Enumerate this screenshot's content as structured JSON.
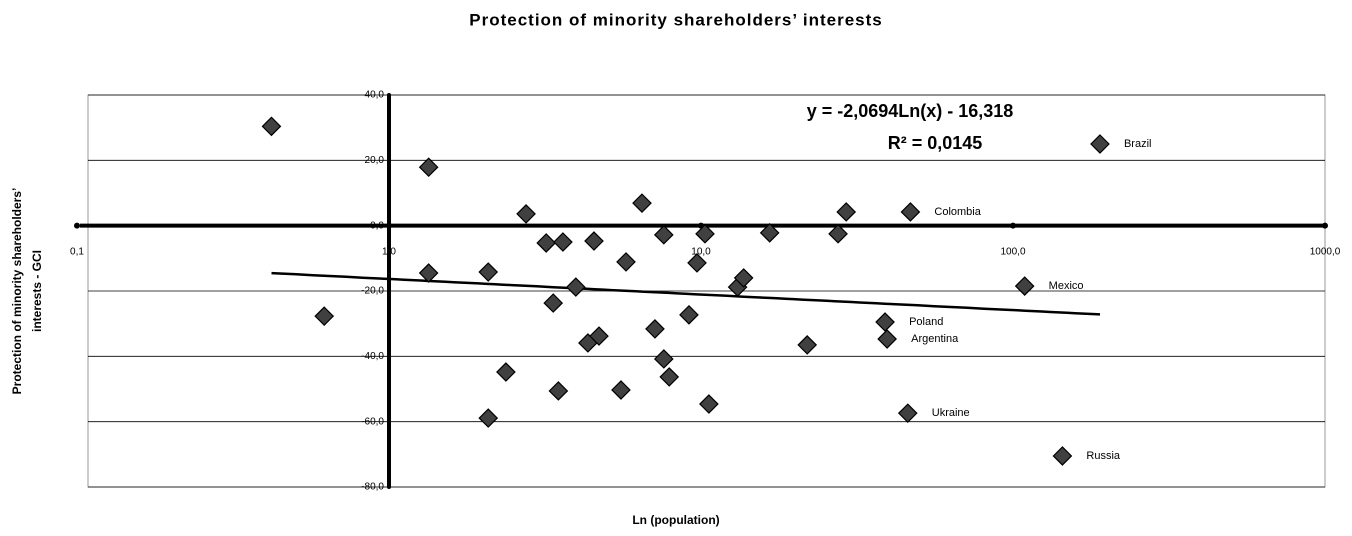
{
  "chart_data": {
    "type": "scatter",
    "title": "Protection of minority shareholders’ interests",
    "xlabel": "Ln (population)",
    "ylabel": [
      "Protection of minority shareholders’",
      "interests - GCI"
    ],
    "xscale": "log",
    "xlim": [
      0.1,
      1000
    ],
    "ylim": [
      -80,
      40
    ],
    "xticks": [
      {
        "value": 0.1,
        "label": "0,1"
      },
      {
        "value": 1,
        "label": "1,0"
      },
      {
        "value": 10,
        "label": "10,0"
      },
      {
        "value": 100,
        "label": "100,0"
      },
      {
        "value": 1000,
        "label": "1000,0"
      }
    ],
    "yticks": [
      {
        "value": 40,
        "label": "40,0"
      },
      {
        "value": 20,
        "label": "20,0"
      },
      {
        "value": 0,
        "label": "0,0"
      },
      {
        "value": -20,
        "label": "-20,0"
      },
      {
        "value": -40,
        "label": "-40,0"
      },
      {
        "value": -60,
        "label": "-60,0"
      },
      {
        "value": -80,
        "label": "-80,0"
      }
    ],
    "grid": true,
    "series": [
      {
        "color": "#404040",
        "x": [
          0.42,
          0.62,
          1.34,
          1.34,
          2.08,
          2.37,
          2.08,
          2.75,
          3.19,
          3.61,
          3.36,
          3.49,
          3.97,
          4.34,
          4.71,
          4.54,
          5.75,
          5.54,
          6.47,
          7.12,
          7.6,
          7.6,
          7.91,
          9.15,
          9.71,
          10.3,
          10.6,
          13.1,
          13.7,
          16.6,
          21.9,
          27.5,
          29.2,
          46.9,
          38.9,
          39.5,
          46,
          109,
          190,
          144
        ],
        "values": [
          30.4,
          -27.7,
          17.9,
          -14.5,
          -14.2,
          -44.8,
          -58.9,
          3.6,
          -5.3,
          -5,
          -23.7,
          -50.6,
          -18.8,
          -35.9,
          -33.8,
          -4.7,
          -11.1,
          -50.3,
          6.9,
          -31.6,
          -2.8,
          -40.8,
          -46.3,
          -27.3,
          -11.4,
          -2.5,
          -54.6,
          -18.8,
          -16,
          -2.2,
          -36.5,
          -2.5,
          4.2,
          4.2,
          -29.5,
          -34.7,
          -57.4,
          -18.5,
          25,
          -70.5
        ],
        "labels": [
          null,
          null,
          null,
          null,
          null,
          null,
          null,
          null,
          null,
          null,
          null,
          null,
          null,
          null,
          null,
          null,
          null,
          null,
          null,
          null,
          null,
          null,
          null,
          null,
          null,
          null,
          null,
          null,
          null,
          null,
          null,
          null,
          null,
          "Colombia",
          "Poland",
          "Argentina",
          "Ukraine",
          "Mexico",
          "Brazil",
          "Russia"
        ]
      }
    ],
    "trendline": {
      "slope": -2.0694,
      "intercept": -16.318,
      "equation": "y = -2,0694Ln(x) - 16,318",
      "r2": "R² = 0,0145"
    }
  }
}
